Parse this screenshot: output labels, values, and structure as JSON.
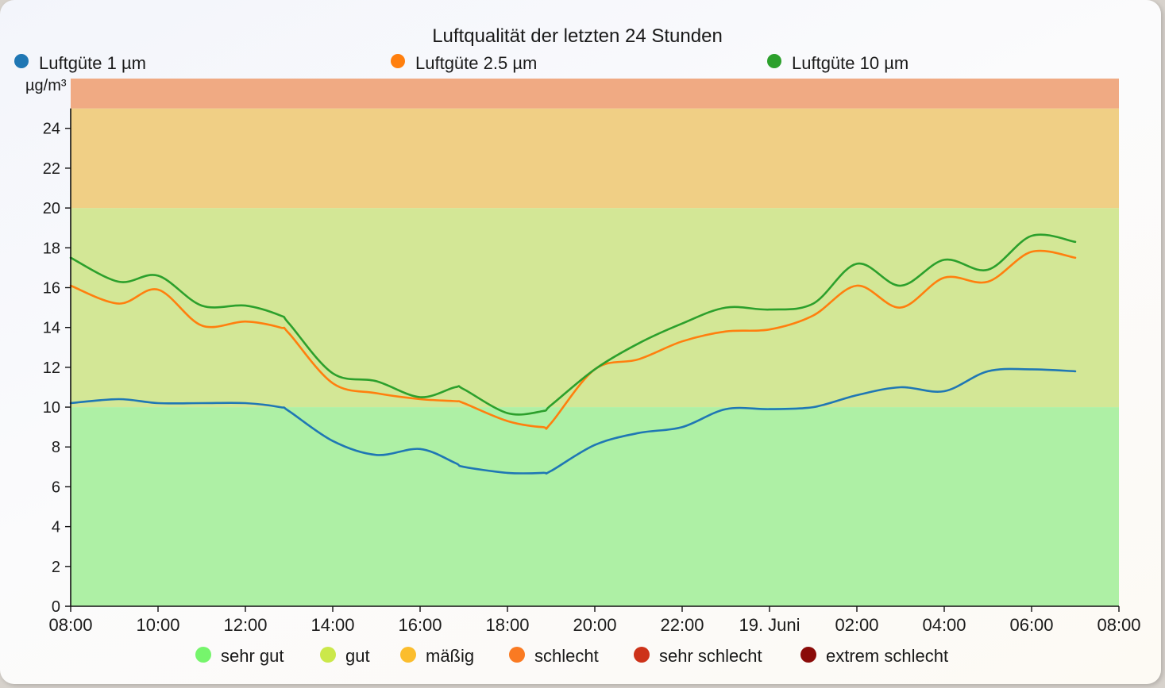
{
  "chart_data": {
    "type": "line",
    "title": "Luftqualität der letzten 24 Stunden",
    "ylabel": "µg/m³",
    "xlabel": "",
    "ylim": [
      0,
      26.5
    ],
    "xlim": [
      0,
      24
    ],
    "yticks": [
      0,
      2,
      4,
      6,
      8,
      10,
      12,
      14,
      16,
      18,
      20,
      22,
      24
    ],
    "xticks": [
      {
        "pos": 0,
        "label": "08:00"
      },
      {
        "pos": 2,
        "label": "10:00"
      },
      {
        "pos": 4,
        "label": "12:00"
      },
      {
        "pos": 6,
        "label": "14:00"
      },
      {
        "pos": 8,
        "label": "16:00"
      },
      {
        "pos": 10,
        "label": "18:00"
      },
      {
        "pos": 12,
        "label": "20:00"
      },
      {
        "pos": 14,
        "label": "22:00"
      },
      {
        "pos": 16,
        "label": "19. Juni"
      },
      {
        "pos": 18,
        "label": "02:00"
      },
      {
        "pos": 20,
        "label": "04:00"
      },
      {
        "pos": 22,
        "label": "06:00"
      },
      {
        "pos": 24,
        "label": "08:00"
      }
    ],
    "x": [
      0,
      1.1,
      2,
      3,
      4,
      4.8,
      5,
      6,
      7,
      8,
      8.8,
      9,
      10,
      10.8,
      11,
      12,
      13,
      14,
      15,
      16,
      17,
      18,
      19,
      20,
      21,
      22,
      23
    ],
    "series": [
      {
        "name": "Luftgüte 1 µm",
        "color": "#1f77b4",
        "values": [
          10.2,
          10.4,
          10.2,
          10.2,
          10.2,
          10.0,
          9.8,
          8.3,
          7.6,
          7.9,
          7.2,
          7.0,
          6.7,
          6.7,
          6.8,
          8.1,
          8.7,
          9.0,
          9.9,
          9.9,
          10.0,
          10.6,
          11.0,
          10.8,
          11.8,
          11.9,
          11.8
        ]
      },
      {
        "name": "Luftgüte 2.5 µm",
        "color": "#ff7f0e",
        "values": [
          16.1,
          15.2,
          15.9,
          14.1,
          14.3,
          14.0,
          13.7,
          11.2,
          10.7,
          10.4,
          10.3,
          10.2,
          9.3,
          9.0,
          9.2,
          11.9,
          12.4,
          13.3,
          13.8,
          13.9,
          14.6,
          16.1,
          15.0,
          16.5,
          16.3,
          17.8,
          17.5
        ]
      },
      {
        "name": "Luftgüte 10 µm",
        "color": "#2ca02c",
        "values": [
          17.5,
          16.3,
          16.6,
          15.1,
          15.1,
          14.6,
          14.2,
          11.7,
          11.3,
          10.5,
          11.0,
          10.9,
          9.7,
          9.8,
          10.1,
          11.9,
          13.2,
          14.2,
          15.0,
          14.9,
          15.2,
          17.2,
          16.1,
          17.4,
          16.9,
          18.6,
          18.3
        ]
      }
    ],
    "bands": [
      {
        "from": 0,
        "to": 10,
        "color": "#aef0a5"
      },
      {
        "from": 10,
        "to": 20,
        "color": "#d3e796"
      },
      {
        "from": 20,
        "to": 25,
        "color": "#f0cf85"
      },
      {
        "from": 25,
        "to": 26.5,
        "color": "#f0aa83"
      }
    ],
    "grid": false,
    "legend_position": "top",
    "category_legend": [
      {
        "label": "sehr gut",
        "color": "#76f56c"
      },
      {
        "label": "gut",
        "color": "#cbe84a"
      },
      {
        "label": "mäßig",
        "color": "#fbbd2d"
      },
      {
        "label": "schlecht",
        "color": "#fa7a22"
      },
      {
        "label": "sehr schlecht",
        "color": "#cd3219"
      },
      {
        "label": "extrem schlecht",
        "color": "#8a0b08"
      }
    ]
  }
}
